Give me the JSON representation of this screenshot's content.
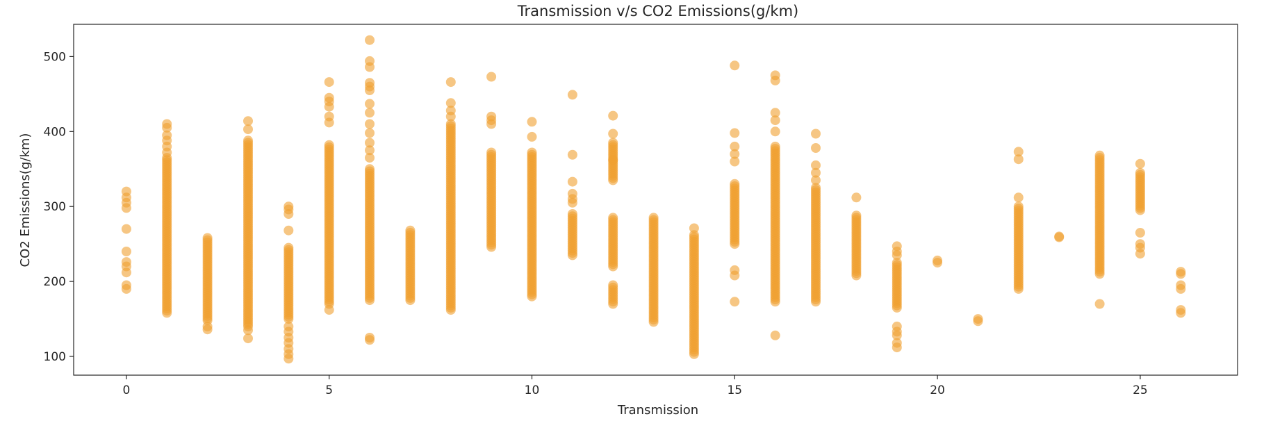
{
  "chart_data": {
    "type": "scatter",
    "title": "Transmission v/s CO2 Emissions(g/km)",
    "xlabel": "Transmission",
    "ylabel": "CO2 Emissions(g/km)",
    "xlim": [
      -1.3,
      27.4
    ],
    "ylim": [
      75,
      543
    ],
    "xticks": [
      0,
      5,
      10,
      15,
      20,
      25
    ],
    "yticks": [
      100,
      200,
      300,
      400,
      500
    ],
    "grid": false,
    "legend": "none",
    "point_color": "#f0a030",
    "columns": [
      {
        "x": 0,
        "dense": [],
        "points": [
          320,
          312,
          305,
          298,
          270,
          240,
          226,
          220,
          212,
          195,
          190
        ]
      },
      {
        "x": 1,
        "dense": [
          [
            158,
            365
          ]
        ],
        "points": [
          410,
          405,
          395,
          388,
          380,
          372
        ]
      },
      {
        "x": 2,
        "dense": [
          [
            148,
            258
          ]
        ],
        "points": [
          140,
          136
        ]
      },
      {
        "x": 3,
        "dense": [
          [
            140,
            388
          ]
        ],
        "points": [
          414,
          403,
          135,
          124
        ]
      },
      {
        "x": 4,
        "dense": [
          [
            150,
            245
          ]
        ],
        "points": [
          300,
          296,
          290,
          268,
          140,
          133,
          125,
          118,
          110,
          103,
          97
        ]
      },
      {
        "x": 5,
        "dense": [
          [
            170,
            382
          ]
        ],
        "points": [
          466,
          445,
          440,
          433,
          420,
          412,
          162
        ]
      },
      {
        "x": 6,
        "dense": [
          [
            175,
            350
          ]
        ],
        "points": [
          522,
          494,
          486,
          465,
          460,
          455,
          437,
          425,
          410,
          398,
          385,
          375,
          365,
          125,
          122
        ]
      },
      {
        "x": 7,
        "dense": [
          [
            175,
            268
          ]
        ],
        "points": []
      },
      {
        "x": 8,
        "dense": [
          [
            162,
            410
          ]
        ],
        "points": [
          466,
          438,
          428,
          420
        ]
      },
      {
        "x": 9,
        "dense": [
          [
            246,
            372
          ]
        ],
        "points": [
          473,
          420,
          415,
          410
        ]
      },
      {
        "x": 10,
        "dense": [
          [
            180,
            372
          ]
        ],
        "points": [
          413,
          393
        ]
      },
      {
        "x": 11,
        "dense": [
          [
            235,
            290
          ]
        ],
        "points": [
          449,
          369,
          333,
          317,
          310,
          305
        ]
      },
      {
        "x": 12,
        "dense": [
          [
            170,
            195
          ],
          [
            220,
            285
          ],
          [
            335,
            385
          ]
        ],
        "points": [
          421,
          397,
          362
        ]
      },
      {
        "x": 13,
        "dense": [
          [
            146,
            285
          ]
        ],
        "points": []
      },
      {
        "x": 14,
        "dense": [
          [
            103,
            262
          ]
        ],
        "points": [
          271
        ]
      },
      {
        "x": 15,
        "dense": [
          [
            250,
            330
          ]
        ],
        "points": [
          488,
          398,
          380,
          370,
          360,
          215,
          208,
          173
        ]
      },
      {
        "x": 16,
        "dense": [
          [
            173,
            380
          ]
        ],
        "points": [
          475,
          468,
          425,
          415,
          400,
          128
        ]
      },
      {
        "x": 17,
        "dense": [
          [
            173,
            325
          ]
        ],
        "points": [
          397,
          378,
          355,
          345,
          335
        ]
      },
      {
        "x": 18,
        "dense": [
          [
            208,
            288
          ]
        ],
        "points": [
          312
        ]
      },
      {
        "x": 19,
        "dense": [
          [
            165,
            225
          ]
        ],
        "points": [
          247,
          240,
          235,
          140,
          133,
          128,
          118,
          112
        ]
      },
      {
        "x": 20,
        "dense": [],
        "points": [
          228,
          225
        ]
      },
      {
        "x": 21,
        "dense": [],
        "points": [
          150,
          147
        ]
      },
      {
        "x": 22,
        "dense": [
          [
            190,
            300
          ]
        ],
        "points": [
          373,
          363,
          312
        ]
      },
      {
        "x": 23,
        "dense": [],
        "points": [
          260,
          259
        ]
      },
      {
        "x": 24,
        "dense": [
          [
            210,
            368
          ]
        ],
        "points": [
          170
        ]
      },
      {
        "x": 25,
        "dense": [
          [
            295,
            345
          ]
        ],
        "points": [
          357,
          265,
          250,
          245,
          237
        ]
      },
      {
        "x": 26,
        "dense": [],
        "points": [
          213,
          210,
          195,
          190,
          162,
          158
        ]
      }
    ]
  }
}
